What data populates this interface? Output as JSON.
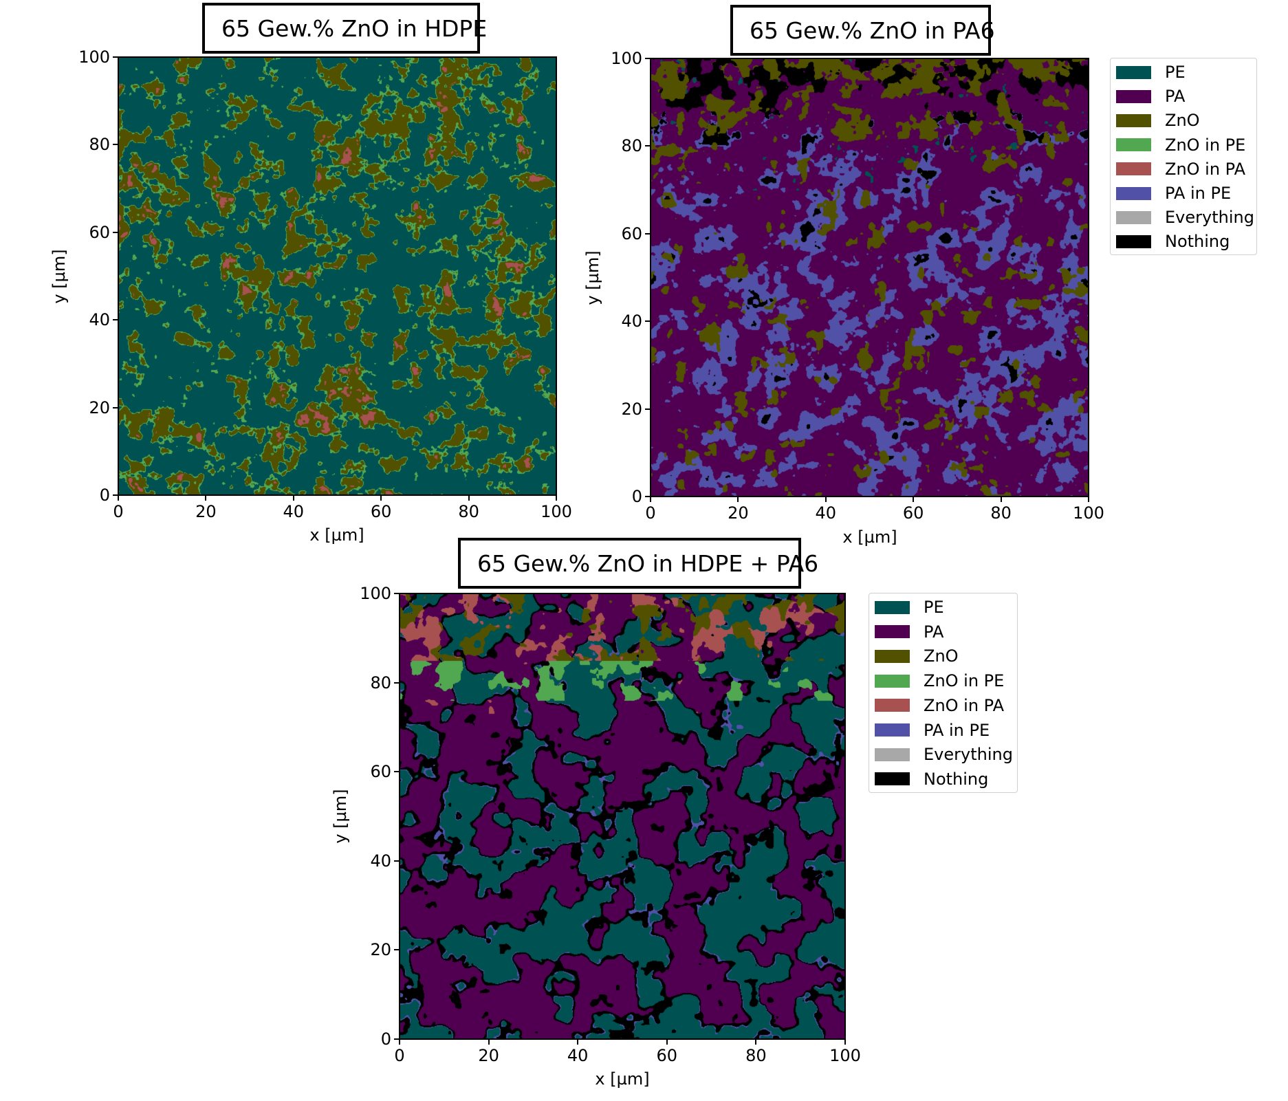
{
  "chart_data": [
    {
      "type": "heatmap",
      "title": "65 Gew.% ZnO in HDPE",
      "xlabel": "x [µm]",
      "ylabel": "y [µm]",
      "xlim": [
        0,
        100
      ],
      "ylim": [
        0,
        100
      ],
      "xticks": [
        "0",
        "20",
        "40",
        "60",
        "80",
        "100"
      ],
      "yticks": [
        "0",
        "20",
        "40",
        "60",
        "80",
        "100"
      ],
      "legend": null,
      "phase_fractions": {
        "PE": 0.62,
        "ZnO": 0.24,
        "ZnO in PE": 0.09,
        "ZnO in PA": 0.05
      },
      "gradient": "uniform"
    },
    {
      "type": "heatmap",
      "title": "65 Gew.% ZnO in PA6",
      "xlabel": "x [µm]",
      "ylabel": "y [µm]",
      "xlim": [
        0,
        100
      ],
      "ylim": [
        0,
        100
      ],
      "xticks": [
        "0",
        "20",
        "40",
        "60",
        "80",
        "100"
      ],
      "yticks": [
        "0",
        "20",
        "40",
        "60",
        "80",
        "100"
      ],
      "legend": "right",
      "phase_fractions": {
        "PA": 0.5,
        "PA in PE": 0.28,
        "Nothing": 0.12,
        "ZnO": 0.08,
        "PE": 0.02
      },
      "gradient": "ZnO and Nothing concentrated near top (y 70-100)"
    },
    {
      "type": "heatmap",
      "title": "65 Gew.% ZnO in HDPE + PA6",
      "xlabel": "x [µm]",
      "ylabel": "y [µm]",
      "xlim": [
        0,
        100
      ],
      "ylim": [
        0,
        100
      ],
      "xticks": [
        "0",
        "20",
        "40",
        "60",
        "80",
        "100"
      ],
      "yticks": [
        "0",
        "20",
        "40",
        "60",
        "80",
        "100"
      ],
      "legend": "right",
      "phase_fractions": {
        "PA": 0.42,
        "PE": 0.36,
        "Nothing": 0.08,
        "ZnO in PE": 0.06,
        "ZnO in PA": 0.04,
        "ZnO": 0.03,
        "PA in PE": 0.01
      },
      "gradient": "ZnO phases concentrated near top (y 80-100)"
    }
  ],
  "legend_items": [
    {
      "label": "PE",
      "color": "#005151"
    },
    {
      "label": "PA",
      "color": "#510051"
    },
    {
      "label": "ZnO",
      "color": "#515100"
    },
    {
      "label": "ZnO in PE",
      "color": "#51a851"
    },
    {
      "label": "ZnO in PA",
      "color": "#a85151"
    },
    {
      "label": "PA in PE",
      "color": "#5151a8"
    },
    {
      "label": "Everything",
      "color": "#a8a8a8"
    },
    {
      "label": "Nothing",
      "color": "#000000"
    }
  ]
}
